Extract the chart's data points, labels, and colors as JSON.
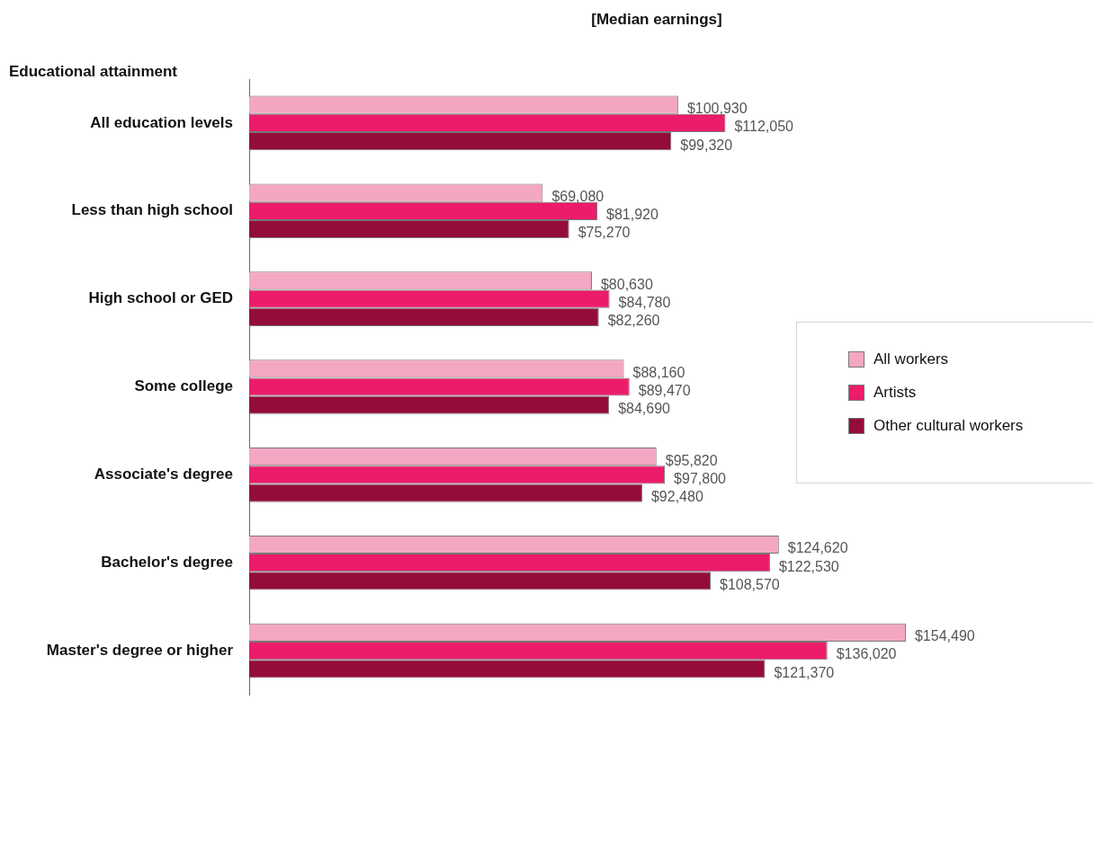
{
  "chart_data": {
    "type": "bar",
    "orientation": "horizontal",
    "title": "[Median earnings]",
    "ylabel": "Educational attainment",
    "categories": [
      "All education levels",
      "Less than high school",
      "High school or GED",
      "Some college",
      "Associate's degree",
      "Bachelor's degree",
      "Master's degree or higher"
    ],
    "series": [
      {
        "name": "All workers",
        "color": "#f4a7c3",
        "values": [
          100930,
          69080,
          80630,
          88160,
          95820,
          124620,
          154490
        ],
        "value_labels": [
          "$100,930",
          "$69,080",
          "$80,630",
          "$88,160",
          "$95,820",
          "$124,620",
          "$154,490"
        ]
      },
      {
        "name": "Artists",
        "color": "#ec1c6b",
        "values": [
          112050,
          81920,
          84780,
          89470,
          97800,
          122530,
          136020
        ],
        "value_labels": [
          "$112,050",
          "$81,920",
          "$84,780",
          "$89,470",
          "$97,800",
          "$122,530",
          "$136,020"
        ]
      },
      {
        "name": "Other cultural workers",
        "color": "#940c3c",
        "values": [
          99320,
          75270,
          82260,
          84690,
          92480,
          108570,
          121370
        ],
        "value_labels": [
          "$99,320",
          "$75,270",
          "$82,260",
          "$84,690",
          "$92,480",
          "$108,570",
          "$121,370"
        ]
      }
    ],
    "legend": "right"
  }
}
